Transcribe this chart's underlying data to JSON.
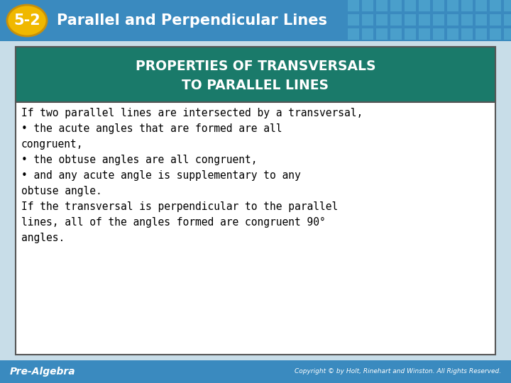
{
  "bg_color": "#c8dde8",
  "header_bg_left": "#3a8abf",
  "header_bg_right": "#5aaad0",
  "header_text_color": "#ffffff",
  "header_badge_bg": "#f0b800",
  "header_badge_border": "#c8900a",
  "header_badge_text": "5-2",
  "header_title": "Parallel and Perpendicular Lines",
  "grid_color": "#4a9dc0",
  "box_bg": "#ffffff",
  "box_border_color": "#555555",
  "box_header_bg": "#1a7a6a",
  "box_header_text_color": "#ffffff",
  "box_header_line1": "PROPERTIES OF TRANSVERSALS",
  "box_header_line2": "TO PARALLEL LINES",
  "body_lines": [
    "If two parallel lines are intersected by a transversal,",
    "• the acute angles that are formed are all",
    "congruent,",
    "• the obtuse angles are all congruent,",
    "• and any acute angle is supplementary to any",
    "obtuse angle.",
    "If the transversal is perpendicular to the parallel",
    "lines, all of the angles formed are congruent 90°",
    "angles."
  ],
  "footer_left": "Pre-Algebra",
  "footer_right": "Copyright © by Holt, Rinehart and Winston. All Rights Reserved.",
  "footer_bg": "#3a8abf",
  "footer_text_color": "#ffffff"
}
